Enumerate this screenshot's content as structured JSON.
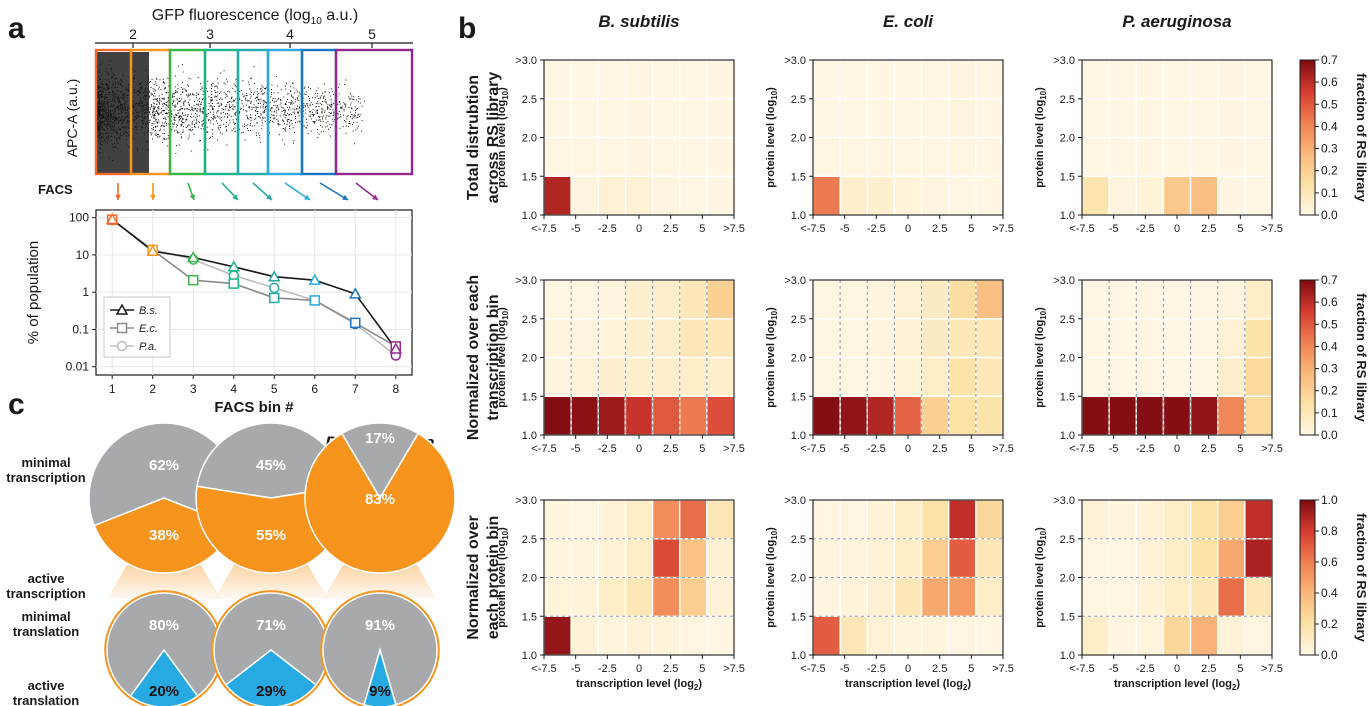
{
  "panels": {
    "a": "a",
    "b": "b",
    "c": "c"
  },
  "panel_a": {
    "top_axis_label": "GFP fluorescence (log",
    "top_axis_sub": "10",
    "top_axis_suffix": " a.u.)",
    "top_ticks": [
      "2",
      "3",
      "4",
      "5"
    ],
    "scatter_ylabel": "APC-A (a.u.)",
    "facs_label": "FACS",
    "gate_colors": [
      "#f26a2b",
      "#f7941d",
      "#39b54a",
      "#1fb58a",
      "#27aaa9",
      "#29abe2",
      "#1b75bc",
      "#93278f"
    ]
  },
  "chart_data": [
    {
      "id": "facs-bins",
      "type": "line",
      "xlabel": "FACS bin #",
      "ylabel": "% of population",
      "x": [
        1,
        2,
        3,
        4,
        5,
        6,
        7,
        8
      ],
      "ylim": [
        0.006,
        160
      ],
      "yscale": "log",
      "yticks": [
        "0.01",
        "0.1",
        "1",
        "10",
        "100"
      ],
      "grid": true,
      "legend_position": "bottom-left",
      "series": [
        {
          "name": "B.s.",
          "marker": "triangle",
          "color": "#1a1a1a",
          "values": [
            90,
            12.5,
            8.5,
            4.8,
            2.6,
            2.1,
            0.9,
            0.03
          ]
        },
        {
          "name": "E.c.",
          "marker": "square",
          "color": "#8c8c8c",
          "values": [
            88,
            13.5,
            2.1,
            1.7,
            0.7,
            0.6,
            0.15,
            0.035
          ]
        },
        {
          "name": "P.a.",
          "marker": "circle",
          "color": "#bdbdbd",
          "values": [
            85,
            14,
            7.5,
            2.8,
            1.3,
            0.6,
            0.14,
            0.02
          ]
        }
      ]
    },
    {
      "id": "heatmaps",
      "type": "heatmap",
      "xlabel": "transcription level (log",
      "xlabel_sub": "2",
      "xlabel_suffix": ")",
      "ylabel": "protein level (log",
      "ylabel_sub": "10",
      "ylabel_suffix": ")",
      "x_ticks": [
        "<-7.5",
        "-5",
        "-2.5",
        "0",
        "2.5",
        "5",
        ">7.5"
      ],
      "y_ticks": [
        "1.0",
        "1.5",
        "2.0",
        "2.5",
        "3.0"
      ],
      "y_top_tick": ">3.0",
      "columns": [
        "B. subtilis",
        "E. coli",
        "P. aeruginosa"
      ],
      "rows": [
        {
          "title": [
            "Total distrubtion",
            "across RS library"
          ],
          "vmax": 0.7,
          "cb_ticks": [
            "0.0",
            "0.1",
            "0.2",
            "0.3",
            "0.4",
            "0.5",
            "0.6",
            "0.7"
          ],
          "cb_label": "fraction of RS library",
          "divider": "none",
          "values": [
            [
              [
                0.62,
                0.02,
                0.04,
                0.04,
                0.02,
                0.005,
                0.005
              ],
              [
                0.005,
                0.01,
                0.01,
                0.01,
                0.01,
                0.005,
                0.005
              ],
              [
                0.005,
                0.005,
                0.01,
                0.01,
                0.01,
                0.005,
                0.005
              ],
              [
                0.005,
                0.005,
                0.005,
                0.01,
                0.01,
                0.005,
                0.005
              ]
            ],
            [
              [
                0.43,
                0.06,
                0.05,
                0.03,
                0.02,
                0.005,
                0.005
              ],
              [
                0.01,
                0.01,
                0.01,
                0.01,
                0.01,
                0.01,
                0.005
              ],
              [
                0.005,
                0.005,
                0.005,
                0.01,
                0.01,
                0.02,
                0.005
              ],
              [
                0.005,
                0.005,
                0.005,
                0.005,
                0.01,
                0.02,
                0.01
              ]
            ],
            [
              [
                0.12,
                0.02,
                0.03,
                0.22,
                0.25,
                0.005,
                0.005
              ],
              [
                0.005,
                0.005,
                0.005,
                0.005,
                0.005,
                0.005,
                0.005
              ],
              [
                0.005,
                0.005,
                0.005,
                0.005,
                0.005,
                0.005,
                0.005
              ],
              [
                0.005,
                0.005,
                0.005,
                0.005,
                0.005,
                0.005,
                0.005
              ]
            ]
          ]
        },
        {
          "title": [
            "Normalized over each",
            "transcription bin"
          ],
          "vmax": 0.7,
          "cb_ticks": [
            "0.0",
            "0.1",
            "0.2",
            "0.3",
            "0.4",
            "0.5",
            "0.6",
            "0.7"
          ],
          "cb_label": "fraction of RS library",
          "divider": "vertical",
          "values": [
            [
              [
                0.69,
                0.68,
                0.65,
                0.58,
                0.5,
                0.43,
                0.52
              ],
              [
                0.02,
                0.03,
                0.05,
                0.06,
                0.06,
                0.07,
                0.06
              ],
              [
                0.02,
                0.02,
                0.03,
                0.05,
                0.06,
                0.1,
                0.1
              ],
              [
                0.01,
                0.01,
                0.02,
                0.05,
                0.06,
                0.1,
                0.2
              ]
            ],
            [
              [
                0.69,
                0.67,
                0.62,
                0.48,
                0.2,
                0.14,
                0.13
              ],
              [
                0.01,
                0.01,
                0.01,
                0.03,
                0.07,
                0.13,
                0.1
              ],
              [
                0.01,
                0.01,
                0.02,
                0.04,
                0.08,
                0.1,
                0.1
              ],
              [
                0.01,
                0.01,
                0.02,
                0.04,
                0.08,
                0.15,
                0.25
              ]
            ],
            [
              [
                0.69,
                0.69,
                0.69,
                0.69,
                0.67,
                0.4,
                0.17
              ],
              [
                0.005,
                0.005,
                0.005,
                0.005,
                0.005,
                0.06,
                0.17
              ],
              [
                0.005,
                0.005,
                0.005,
                0.005,
                0.005,
                0.04,
                0.13
              ],
              [
                0.005,
                0.005,
                0.005,
                0.005,
                0.005,
                0.02,
                0.07
              ]
            ]
          ]
        },
        {
          "title": [
            "Normalized over",
            "each protein bin"
          ],
          "vmax": 1.0,
          "cb_ticks": [
            "0.0",
            "0.2",
            "0.4",
            "0.6",
            "0.8",
            "1.0"
          ],
          "cb_label": "fraction of RS library",
          "divider": "horizontal",
          "values": [
            [
              [
                0.95,
                0.05,
                0.03,
                0.05,
                0.04,
                0.02,
                0.01
              ],
              [
                0.04,
                0.04,
                0.1,
                0.15,
                0.55,
                0.3,
                0.05
              ],
              [
                0.03,
                0.03,
                0.05,
                0.1,
                0.75,
                0.35,
                0.06
              ],
              [
                0.03,
                0.02,
                0.05,
                0.1,
                0.55,
                0.65,
                0.15
              ]
            ],
            [
              [
                0.7,
                0.15,
                0.05,
                0.03,
                0.03,
                0.02,
                0.01
              ],
              [
                0.02,
                0.04,
                0.06,
                0.15,
                0.45,
                0.5,
                0.1
              ],
              [
                0.03,
                0.03,
                0.05,
                0.1,
                0.3,
                0.7,
                0.15
              ],
              [
                0.02,
                0.02,
                0.05,
                0.1,
                0.2,
                0.85,
                0.25
              ]
            ],
            [
              [
                0.1,
                0.02,
                0.03,
                0.25,
                0.42,
                0.05,
                0.02
              ],
              [
                0.02,
                0.02,
                0.05,
                0.1,
                0.15,
                0.65,
                0.15
              ],
              [
                0.02,
                0.02,
                0.05,
                0.1,
                0.2,
                0.45,
                0.9
              ],
              [
                0.05,
                0.03,
                0.05,
                0.1,
                0.2,
                0.3,
                0.85
              ]
            ]
          ]
        }
      ]
    },
    {
      "id": "pies",
      "type": "pie",
      "organisms": [
        {
          "name": "B. subtilis",
          "transcription": {
            "minimal": 62,
            "active": 38
          },
          "translation": {
            "minimal": 80,
            "active": 20
          }
        },
        {
          "name": "E. coli",
          "transcription": {
            "minimal": 45,
            "active": 55
          },
          "translation": {
            "minimal": 71,
            "active": 29
          }
        },
        {
          "name": "P. aeruginosa",
          "transcription": {
            "minimal": 17,
            "active": 83
          },
          "translation": {
            "minimal": 91,
            "active": 9
          }
        }
      ],
      "labels": {
        "minimal_transcription": [
          "minimal",
          "transcription"
        ],
        "active_transcription": [
          "active",
          "transcription"
        ],
        "minimal_translation": [
          "minimal",
          "translation"
        ],
        "active_translation": [
          "active",
          "translation"
        ]
      },
      "colors": {
        "minimal": "#a7a9ac",
        "active_transcription": "#f7941d",
        "active_translation": "#27a9e1",
        "label_orange": "#f26a2b",
        "label_blue": "#27a9e1",
        "label_gray": "#58595b"
      }
    }
  ]
}
